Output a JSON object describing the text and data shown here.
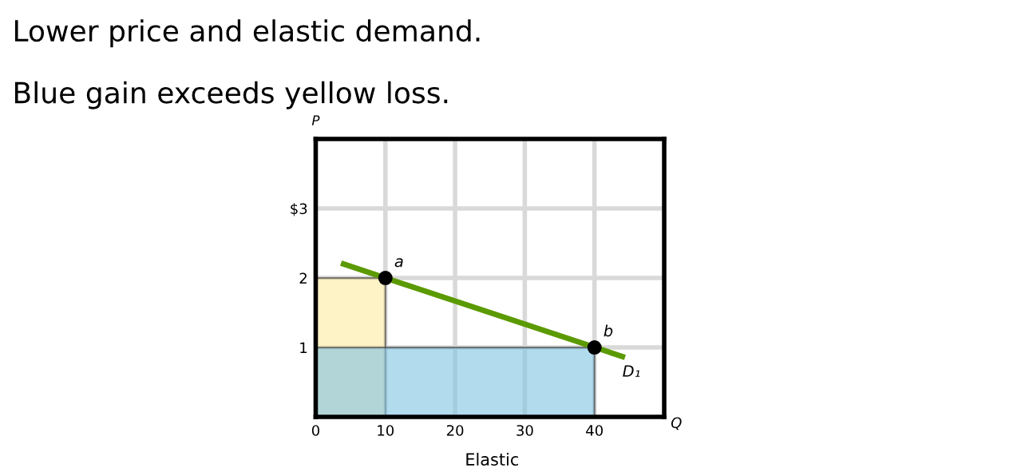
{
  "chart_data": {
    "type": "line",
    "title": "Lower price and elastic demand.",
    "subtitle": "Blue gain exceeds yellow loss.",
    "xlabel": "Q",
    "ylabel": "P",
    "xlim": [
      0,
      50
    ],
    "ylim": [
      0,
      4
    ],
    "xticks": [
      0,
      10,
      20,
      30,
      40
    ],
    "yticks": [
      1,
      2,
      {
        "value": 3,
        "label": "$3"
      }
    ],
    "grid": true,
    "series": [
      {
        "type": "area",
        "color": "#fde9a1",
        "x": [
          0,
          10
        ],
        "values": [
          2,
          2
        ]
      },
      {
        "type": "area",
        "color": "#7ec3e3",
        "x": [
          0,
          40
        ],
        "values": [
          1,
          1
        ]
      },
      {
        "name": "D₁",
        "color": "#5b9a00",
        "x": [
          4,
          44
        ],
        "values": [
          2.2,
          0.87
        ],
        "marker": "none"
      },
      {
        "type": "scatter",
        "color": "#000000",
        "x": [
          10,
          40
        ],
        "values": [
          2,
          1
        ],
        "marker": "circle"
      }
    ],
    "annotations": [
      {
        "text": "a",
        "x": 10,
        "y": 2
      },
      {
        "text": "b",
        "x": 40,
        "y": 1
      },
      "Elastic"
    ]
  }
}
